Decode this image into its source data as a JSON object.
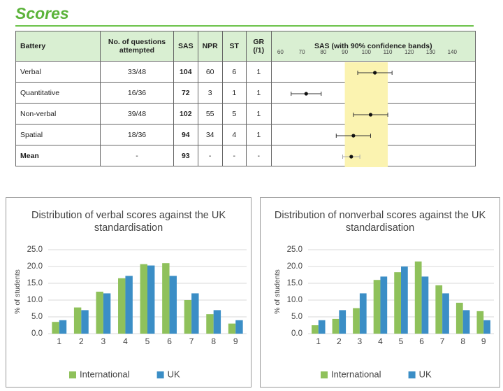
{
  "title": "Scores",
  "table": {
    "columns": [
      "Battery",
      "No. of questions attempted",
      "SAS",
      "NPR",
      "ST",
      "GR (/1)"
    ],
    "rows": [
      [
        "Verbal",
        "33/48",
        104,
        60,
        6,
        1
      ],
      [
        "Quantitative",
        "16/36",
        72,
        3,
        1,
        1
      ],
      [
        "Non-verbal",
        "39/48",
        102,
        55,
        5,
        1
      ],
      [
        "Spatial",
        "18/36",
        94,
        34,
        4,
        1
      ],
      [
        "Mean",
        "-",
        93,
        "-",
        "-",
        "-"
      ]
    ]
  },
  "sas_chart": {
    "title": "SAS (with 90% confidence bands)",
    "xlim": [
      55,
      150
    ],
    "xticks": [
      60,
      70,
      80,
      90,
      100,
      110,
      120,
      130,
      140
    ],
    "band": [
      90,
      110
    ],
    "errors": [
      8,
      7,
      8,
      8,
      4
    ]
  },
  "chart_data": [
    {
      "type": "bar",
      "title": "Distribution of verbal scores against the UK standardisation",
      "y_label": "% of students",
      "categories": [
        "1",
        "2",
        "3",
        "4",
        "5",
        "6",
        "7",
        "8",
        "9"
      ],
      "series": [
        {
          "name": "International",
          "color": "#8fc15b",
          "values": [
            3.5,
            7.8,
            12.5,
            16.5,
            20.7,
            21.0,
            10.0,
            5.8,
            3.0
          ]
        },
        {
          "name": "UK",
          "color": "#3b8ec6",
          "values": [
            4.0,
            7.0,
            12.0,
            17.2,
            20.3,
            17.2,
            12.0,
            7.0,
            4.0
          ]
        }
      ],
      "ylim": [
        0,
        25
      ],
      "yticks": [
        {
          "value": 0,
          "label": "0.0"
        },
        {
          "value": 5,
          "label": "5.0"
        },
        {
          "value": 10,
          "label": "10.0"
        },
        {
          "value": 15,
          "label": "15.0"
        },
        {
          "value": 20,
          "label": "20.0"
        },
        {
          "value": 25,
          "label": "25.0"
        }
      ],
      "grid": true,
      "legend": "bottom"
    },
    {
      "type": "bar",
      "title": "Distribution of nonverbal scores against the UK standardisation",
      "y_label": "% of students",
      "categories": [
        "1",
        "2",
        "3",
        "4",
        "5",
        "6",
        "7",
        "8",
        "9"
      ],
      "series": [
        {
          "name": "International",
          "color": "#8fc15b",
          "values": [
            2.5,
            4.4,
            7.6,
            16.0,
            18.3,
            21.5,
            14.4,
            9.2,
            6.7
          ]
        },
        {
          "name": "UK",
          "color": "#3b8ec6",
          "values": [
            4.0,
            7.0,
            12.0,
            17.0,
            20.0,
            17.0,
            12.0,
            7.0,
            4.0
          ]
        }
      ],
      "ylim": [
        0,
        25
      ],
      "yticks": [
        {
          "value": 0,
          "label": "0.0"
        },
        {
          "value": 5,
          "label": "5.0"
        },
        {
          "value": 10,
          "label": "10.0"
        },
        {
          "value": 15,
          "label": "15.0"
        },
        {
          "value": 20,
          "label": "20.0"
        },
        {
          "value": 25,
          "label": "25.0"
        }
      ],
      "grid": true,
      "legend": "bottom"
    }
  ]
}
